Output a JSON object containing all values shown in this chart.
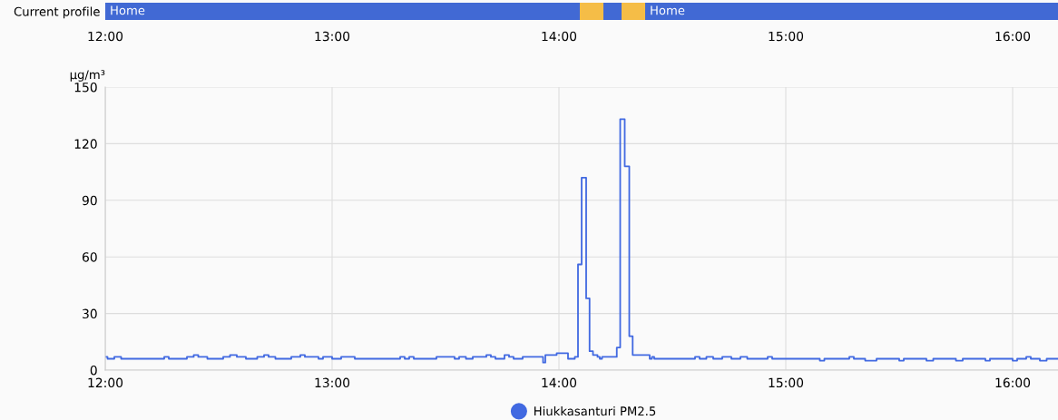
{
  "chart_data": [
    {
      "type": "bar",
      "orientation": "horizontal",
      "categories": [
        "Current profile"
      ],
      "series": [
        {
          "color": "#4169d4",
          "base": [
            12.0
          ],
          "values": [
            2.092
          ],
          "value_labels": [
            "Home"
          ]
        },
        {
          "color": "#f5bd47",
          "base": [
            14.092
          ],
          "values": [
            0.104
          ]
        },
        {
          "color": "#4169d4",
          "base": [
            14.196
          ],
          "values": [
            0.08
          ]
        },
        {
          "color": "#f5bd47",
          "base": [
            14.276
          ],
          "values": [
            0.104
          ]
        },
        {
          "color": "#4169d4",
          "base": [
            14.38
          ],
          "values": [
            1.82
          ],
          "value_labels": [
            "Home"
          ]
        }
      ],
      "xlim": [
        12,
        16.2
      ],
      "xticks": [
        {
          "value": 12,
          "label": "12:00"
        },
        {
          "value": 13,
          "label": "13:00"
        },
        {
          "value": 14,
          "label": "14:00"
        },
        {
          "value": 15,
          "label": "15:00"
        },
        {
          "value": 16,
          "label": "16:00"
        }
      ],
      "grid": false
    },
    {
      "type": "step",
      "ylabel": "µg/m³",
      "legend": "bottom",
      "grid": true,
      "xlim": [
        12,
        16.2
      ],
      "xticks": [
        {
          "value": 12,
          "label": "12:00"
        },
        {
          "value": 13,
          "label": "13:00"
        },
        {
          "value": 14,
          "label": "14:00"
        },
        {
          "value": 15,
          "label": "15:00"
        },
        {
          "value": 16,
          "label": "16:00"
        }
      ],
      "ylim": [
        0,
        150
      ],
      "yticks": [
        0,
        30,
        60,
        90,
        120,
        150
      ],
      "series": [
        {
          "name": "Hiukkasanturi PM2.5",
          "color": "#4169e1",
          "x": [
            12.0,
            12.01,
            12.04,
            12.07,
            12.26,
            12.28,
            12.36,
            12.39,
            12.41,
            12.45,
            12.52,
            12.55,
            12.58,
            12.62,
            12.67,
            12.7,
            12.72,
            12.75,
            12.82,
            12.86,
            12.88,
            12.94,
            12.96,
            13.0,
            13.04,
            13.1,
            13.3,
            13.32,
            13.34,
            13.36,
            13.46,
            13.54,
            13.56,
            13.59,
            13.62,
            13.68,
            13.7,
            13.72,
            13.76,
            13.78,
            13.8,
            13.84,
            13.93,
            13.94,
            13.99,
            14.04,
            14.07,
            14.084,
            14.1,
            14.12,
            14.135,
            14.15,
            14.17,
            14.18,
            14.19,
            14.255,
            14.27,
            14.29,
            14.31,
            14.325,
            14.4,
            14.41,
            14.42,
            14.6,
            14.62,
            14.65,
            14.68,
            14.72,
            14.76,
            14.8,
            14.83,
            14.92,
            14.94,
            15.15,
            15.17,
            15.28,
            15.3,
            15.35,
            15.4,
            15.5,
            15.52,
            15.62,
            15.65,
            15.75,
            15.78,
            15.88,
            15.9,
            16.0,
            16.02,
            16.06,
            16.08,
            16.12,
            16.15,
            16.2
          ],
          "values": [
            7,
            6,
            7,
            6,
            7,
            6,
            7,
            8,
            7,
            6,
            7,
            8,
            7,
            6,
            7,
            8,
            7,
            6,
            7,
            8,
            7,
            6,
            7,
            6,
            7,
            6,
            7,
            6,
            7,
            6,
            7,
            6,
            7,
            6,
            7,
            8,
            7,
            6,
            8,
            7,
            6,
            7,
            4,
            8,
            9,
            6,
            7,
            56,
            102,
            38,
            10,
            8,
            7,
            6,
            7,
            12,
            133,
            108,
            18,
            8,
            6,
            7,
            6,
            7,
            6,
            7,
            6,
            7,
            6,
            7,
            6,
            7,
            6,
            5,
            6,
            7,
            6,
            5,
            6,
            5,
            6,
            5,
            6,
            5,
            6,
            5,
            6,
            5,
            6,
            7,
            6,
            5,
            6,
            6
          ]
        }
      ]
    }
  ]
}
